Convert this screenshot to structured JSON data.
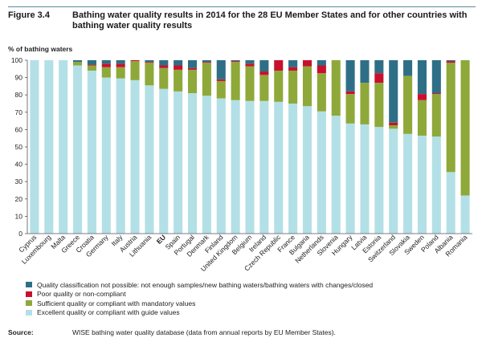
{
  "figure": {
    "label": "Figure 3.4",
    "title": "Bathing water quality results in 2014 for the 28 EU Member States and for other countries with bathing water quality results"
  },
  "source": {
    "label": "Source:",
    "text": "WISE bathing water quality database (data from annual reports by EU Member States)."
  },
  "colors": {
    "excellent": "#b3e0e6",
    "sufficient": "#8fa83a",
    "poor": "#c8102e",
    "not_possible": "#2e6f87",
    "axis": "#555555",
    "grid": "#bbbbbb"
  },
  "legend": [
    {
      "key": "not_possible",
      "label": "Quality classification not possible: not enough samples/new bathing waters/bathing waters with changes/closed"
    },
    {
      "key": "poor",
      "label": "Poor quality or non-compliant"
    },
    {
      "key": "sufficient",
      "label": "Sufficient quality or compliant with mandatory values"
    },
    {
      "key": "excellent",
      "label": "Excellent quality or compliant with guide values"
    }
  ],
  "chart_data": {
    "type": "bar",
    "stacked": true,
    "ylabel": "% of bathing waters",
    "ylim": [
      0,
      100
    ],
    "yticks": [
      0,
      10,
      20,
      30,
      40,
      50,
      60,
      70,
      80,
      90,
      100
    ],
    "grid": false,
    "bold_categories": [
      "EU"
    ],
    "categories": [
      "Cyprus",
      "Luxembourg",
      "Malta",
      "Greece",
      "Croatia",
      "Germany",
      "Italy",
      "Austria",
      "Lithuania",
      "EU",
      "Spain",
      "Portugal",
      "Denmark",
      "Finland",
      "United Kingdom",
      "Belgium",
      "Ireland",
      "Czech Republic",
      "France",
      "Bulgaria",
      "Netherlands",
      "Slovenia",
      "Hungary",
      "Latvia",
      "Estonia",
      "Switzerland",
      "Slovakia",
      "Sweden",
      "Poland",
      "Albania",
      "Romania"
    ],
    "series": [
      {
        "name": "Excellent quality or compliant with guide values",
        "key": "excellent",
        "values": [
          100,
          100,
          100,
          97,
          94,
          90,
          89.5,
          88.5,
          85.5,
          83.5,
          82,
          81,
          79.5,
          78,
          77,
          76.5,
          76.5,
          76,
          75,
          73.5,
          70.5,
          68,
          63.5,
          63,
          61.5,
          60.5,
          57.5,
          56.5,
          56,
          35.5,
          22
        ]
      },
      {
        "name": "Sufficient quality or compliant with mandatory values",
        "key": "sufficient",
        "values": [
          0,
          0,
          0,
          2,
          3,
          6,
          6.5,
          11,
          13,
          12,
          12.5,
          13.5,
          19,
          10,
          22,
          20,
          15,
          18,
          19,
          23,
          22,
          32,
          17,
          24,
          25.5,
          2,
          33.5,
          20.5,
          24.5,
          63,
          78
        ]
      },
      {
        "name": "Poor quality or non-compliant",
        "key": "poor",
        "values": [
          0,
          0,
          0,
          0,
          0.5,
          2,
          2,
          0.5,
          0.5,
          1.5,
          2.5,
          1,
          0.5,
          1,
          0.5,
          1.5,
          2,
          6,
          2,
          3.5,
          4.5,
          0,
          1.5,
          0,
          5.5,
          1.5,
          0,
          3.5,
          0.5,
          1,
          0
        ]
      },
      {
        "name": "Quality classification not possible: not enough samples/new bathing waters/bathing waters with changes/closed",
        "key": "not_possible",
        "values": [
          0,
          0,
          0,
          1,
          2.5,
          2,
          2,
          0,
          1,
          3,
          3,
          4.5,
          1,
          11,
          0.5,
          2,
          6.5,
          0,
          4,
          0,
          3,
          0,
          18,
          13,
          7.5,
          36,
          9,
          19.5,
          19,
          0.5,
          0
        ]
      }
    ]
  }
}
